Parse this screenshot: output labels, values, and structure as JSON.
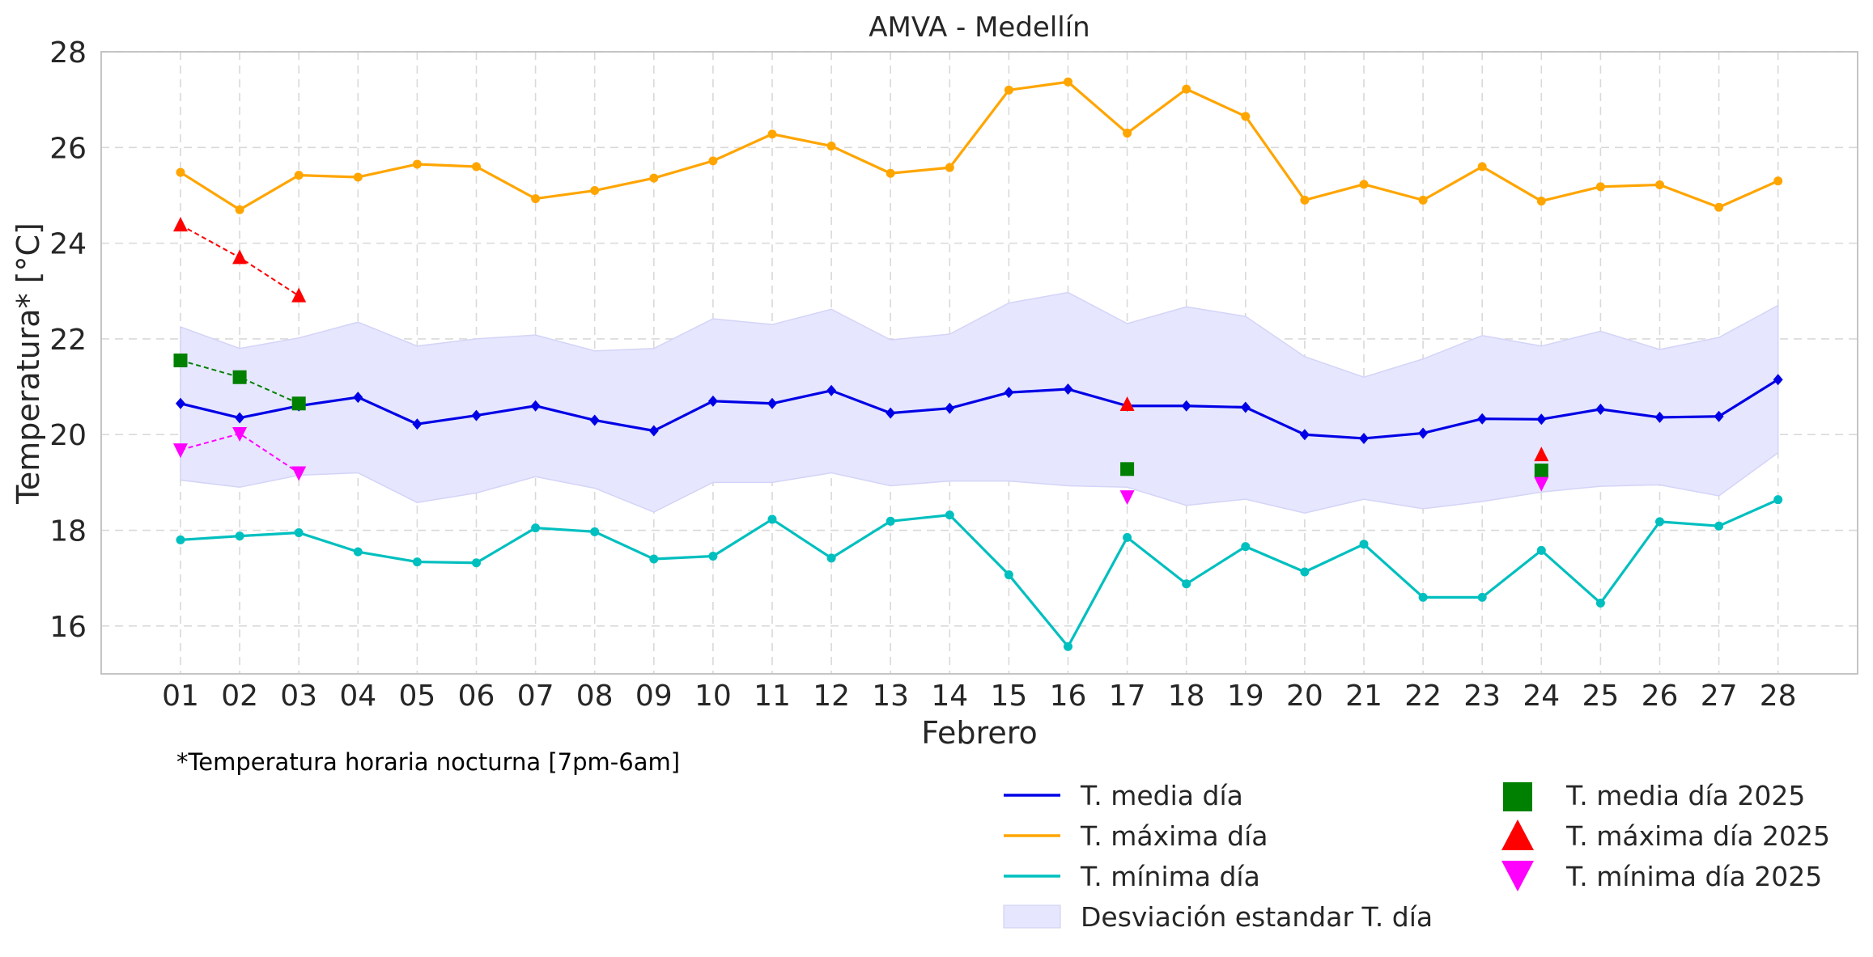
{
  "chart_data": {
    "type": "line",
    "title": "AMVA - Medellín",
    "xlabel": "Febrero",
    "ylabel": "Temperatura* [°C]",
    "note": "*Temperatura horaria nocturna [7pm-6am]",
    "ylim": [
      15,
      28
    ],
    "yticks": [
      16,
      18,
      20,
      22,
      24,
      26,
      28
    ],
    "grid": true,
    "legend_position": "bottom-right",
    "categories": [
      "01",
      "02",
      "03",
      "04",
      "05",
      "06",
      "07",
      "08",
      "09",
      "10",
      "11",
      "12",
      "13",
      "14",
      "15",
      "16",
      "17",
      "18",
      "19",
      "20",
      "21",
      "22",
      "23",
      "24",
      "25",
      "26",
      "27",
      "28"
    ],
    "series": [
      {
        "name": "T. media día",
        "color": "#0000e6",
        "marker": "diamond",
        "values": [
          20.65,
          20.35,
          20.6,
          20.78,
          20.22,
          20.4,
          20.6,
          20.3,
          20.08,
          20.7,
          20.65,
          20.92,
          20.45,
          20.55,
          20.88,
          20.95,
          20.6,
          20.6,
          20.57,
          20.0,
          19.92,
          20.03,
          20.33,
          20.32,
          20.53,
          20.36,
          20.38,
          21.15
        ]
      },
      {
        "name": "T. máxima día",
        "color": "#ffa500",
        "marker": "circle",
        "values": [
          25.48,
          24.7,
          25.42,
          25.38,
          25.65,
          25.6,
          24.93,
          25.1,
          25.36,
          25.72,
          26.28,
          26.03,
          25.46,
          25.58,
          27.2,
          27.37,
          26.3,
          27.22,
          26.65,
          24.9,
          25.23,
          24.9,
          25.6,
          24.88,
          25.18,
          25.22,
          24.75,
          25.3
        ]
      },
      {
        "name": "T. mínima día",
        "color": "#00bfbf",
        "marker": "circle",
        "values": [
          17.8,
          17.88,
          17.95,
          17.55,
          17.34,
          17.32,
          18.05,
          17.97,
          17.4,
          17.46,
          18.23,
          17.42,
          18.19,
          18.32,
          17.07,
          15.57,
          17.85,
          16.88,
          17.66,
          17.13,
          17.71,
          16.6,
          16.6,
          17.58,
          16.48,
          18.18,
          18.09,
          18.64
        ]
      }
    ],
    "band": {
      "name": "Desviación estandar T. día",
      "color": "#e6e6ff",
      "upper": [
        22.25,
        21.8,
        22.02,
        22.35,
        21.85,
        22.0,
        22.08,
        21.75,
        21.8,
        22.42,
        22.3,
        22.62,
        21.98,
        22.1,
        22.75,
        22.97,
        22.32,
        22.67,
        22.47,
        21.63,
        21.2,
        21.58,
        22.07,
        21.85,
        22.16,
        21.78,
        22.03,
        22.7
      ],
      "lower": [
        19.05,
        18.9,
        19.15,
        19.2,
        18.58,
        18.78,
        19.12,
        18.88,
        18.38,
        19.0,
        19.0,
        19.2,
        18.93,
        19.03,
        19.03,
        18.93,
        18.9,
        18.52,
        18.65,
        18.36,
        18.65,
        18.45,
        18.6,
        18.8,
        18.92,
        18.95,
        18.72,
        19.62
      ]
    },
    "series_2025": [
      {
        "name": "T. media día 2025",
        "color": "#008000",
        "marker": "square",
        "points": [
          [
            "01",
            21.55
          ],
          [
            "02",
            21.2
          ],
          [
            "03",
            20.65
          ],
          [
            "17",
            19.28
          ],
          [
            "24",
            19.25
          ]
        ],
        "connected": [
          "01",
          "02",
          "03"
        ]
      },
      {
        "name": "T. máxima día 2025",
        "color": "#ff0000",
        "marker": "triangle-up",
        "points": [
          [
            "01",
            24.38
          ],
          [
            "02",
            23.7
          ],
          [
            "03",
            22.9
          ],
          [
            "17",
            20.63
          ],
          [
            "24",
            19.58
          ]
        ],
        "connected": [
          "01",
          "02",
          "03"
        ]
      },
      {
        "name": "T. mínima día 2025",
        "color": "#ff00ff",
        "marker": "triangle-down",
        "points": [
          [
            "01",
            19.68
          ],
          [
            "02",
            20.02
          ],
          [
            "03",
            19.2
          ],
          [
            "17",
            18.7
          ],
          [
            "24",
            18.98
          ]
        ],
        "connected": [
          "01",
          "02",
          "03"
        ]
      }
    ]
  }
}
